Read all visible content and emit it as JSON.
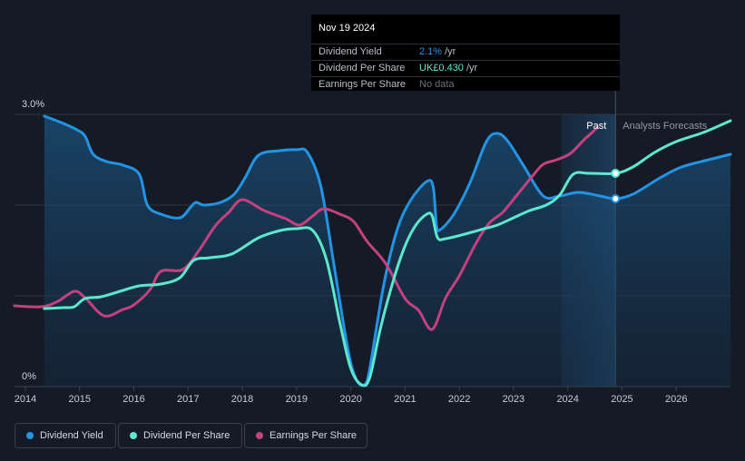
{
  "chart_data": {
    "type": "line",
    "ytick_labels": [
      "3.0%",
      "0%"
    ],
    "ylim": [
      0,
      3.0
    ],
    "xlim": [
      2013.8,
      2027.0
    ],
    "xtick_values": [
      2014,
      2015,
      2016,
      2017,
      2018,
      2019,
      2020,
      2021,
      2022,
      2023,
      2024,
      2025,
      2026
    ],
    "xtick_labels": [
      "2014",
      "2015",
      "2016",
      "2017",
      "2018",
      "2019",
      "2020",
      "2021",
      "2022",
      "2023",
      "2024",
      "2025",
      "2026"
    ],
    "past_label": "Past",
    "forecast_label": "Analysts Forecasts",
    "divider_x": 2024.88,
    "forecast_band_start": 2023.88,
    "series": [
      {
        "name": "Dividend Yield",
        "color": "#2394e3",
        "area": true,
        "points": [
          [
            2014.35,
            2.98
          ],
          [
            2014.7,
            2.9
          ],
          [
            2014.95,
            2.83
          ],
          [
            2015.1,
            2.76
          ],
          [
            2015.25,
            2.56
          ],
          [
            2015.5,
            2.48
          ],
          [
            2015.8,
            2.44
          ],
          [
            2016.1,
            2.34
          ],
          [
            2016.25,
            2.0
          ],
          [
            2016.5,
            1.9
          ],
          [
            2016.85,
            1.86
          ],
          [
            2017.05,
            1.98
          ],
          [
            2017.15,
            2.03
          ],
          [
            2017.3,
            2.0
          ],
          [
            2017.6,
            2.03
          ],
          [
            2017.85,
            2.12
          ],
          [
            2018.05,
            2.3
          ],
          [
            2018.3,
            2.55
          ],
          [
            2018.7,
            2.6
          ],
          [
            2019.0,
            2.61
          ],
          [
            2019.2,
            2.58
          ],
          [
            2019.45,
            2.2
          ],
          [
            2019.7,
            1.3
          ],
          [
            2019.95,
            0.4
          ],
          [
            2020.1,
            0.08
          ],
          [
            2020.25,
            0.02
          ],
          [
            2020.35,
            0.2
          ],
          [
            2020.6,
            1.1
          ],
          [
            2020.85,
            1.72
          ],
          [
            2021.1,
            2.05
          ],
          [
            2021.4,
            2.26
          ],
          [
            2021.52,
            2.2
          ],
          [
            2021.58,
            1.78
          ],
          [
            2021.65,
            1.73
          ],
          [
            2021.9,
            1.9
          ],
          [
            2022.2,
            2.25
          ],
          [
            2022.5,
            2.7
          ],
          [
            2022.7,
            2.79
          ],
          [
            2022.9,
            2.7
          ],
          [
            2023.2,
            2.42
          ],
          [
            2023.55,
            2.1
          ],
          [
            2023.85,
            2.1
          ],
          [
            2024.2,
            2.14
          ],
          [
            2024.6,
            2.1
          ],
          [
            2024.88,
            2.07
          ],
          [
            2025.2,
            2.12
          ],
          [
            2025.7,
            2.3
          ],
          [
            2026.1,
            2.42
          ],
          [
            2026.6,
            2.5
          ],
          [
            2027.0,
            2.56
          ]
        ]
      },
      {
        "name": "Dividend Per Share",
        "color": "#5ce8cc",
        "area": false,
        "points": [
          [
            2014.35,
            0.86
          ],
          [
            2014.7,
            0.87
          ],
          [
            2014.9,
            0.88
          ],
          [
            2015.1,
            0.97
          ],
          [
            2015.4,
            0.99
          ],
          [
            2015.8,
            1.06
          ],
          [
            2016.1,
            1.11
          ],
          [
            2016.5,
            1.13
          ],
          [
            2016.85,
            1.2
          ],
          [
            2017.1,
            1.39
          ],
          [
            2017.4,
            1.42
          ],
          [
            2017.8,
            1.46
          ],
          [
            2018.3,
            1.64
          ],
          [
            2018.7,
            1.72
          ],
          [
            2019.0,
            1.74
          ],
          [
            2019.3,
            1.72
          ],
          [
            2019.55,
            1.4
          ],
          [
            2019.8,
            0.7
          ],
          [
            2020.0,
            0.2
          ],
          [
            2020.2,
            0.02
          ],
          [
            2020.35,
            0.1
          ],
          [
            2020.55,
            0.65
          ],
          [
            2020.8,
            1.2
          ],
          [
            2021.0,
            1.55
          ],
          [
            2021.2,
            1.78
          ],
          [
            2021.4,
            1.9
          ],
          [
            2021.5,
            1.88
          ],
          [
            2021.6,
            1.64
          ],
          [
            2021.75,
            1.63
          ],
          [
            2022.1,
            1.68
          ],
          [
            2022.4,
            1.73
          ],
          [
            2022.7,
            1.78
          ],
          [
            2023.0,
            1.86
          ],
          [
            2023.3,
            1.94
          ],
          [
            2023.6,
            2.0
          ],
          [
            2023.85,
            2.11
          ],
          [
            2024.1,
            2.34
          ],
          [
            2024.4,
            2.35
          ],
          [
            2024.88,
            2.35
          ],
          [
            2025.2,
            2.42
          ],
          [
            2025.6,
            2.58
          ],
          [
            2026.0,
            2.7
          ],
          [
            2026.5,
            2.8
          ],
          [
            2027.0,
            2.93
          ]
        ]
      },
      {
        "name": "Earnings Per Share",
        "color": "#c4407f",
        "area": false,
        "points": [
          [
            2013.8,
            0.89
          ],
          [
            2014.3,
            0.88
          ],
          [
            2014.6,
            0.94
          ],
          [
            2014.9,
            1.05
          ],
          [
            2015.1,
            0.98
          ],
          [
            2015.45,
            0.78
          ],
          [
            2015.8,
            0.85
          ],
          [
            2016.0,
            0.9
          ],
          [
            2016.3,
            1.07
          ],
          [
            2016.5,
            1.27
          ],
          [
            2016.9,
            1.29
          ],
          [
            2017.2,
            1.5
          ],
          [
            2017.5,
            1.77
          ],
          [
            2017.75,
            1.92
          ],
          [
            2018.0,
            2.06
          ],
          [
            2018.4,
            1.94
          ],
          [
            2018.8,
            1.85
          ],
          [
            2019.05,
            1.78
          ],
          [
            2019.3,
            1.88
          ],
          [
            2019.5,
            1.96
          ],
          [
            2019.8,
            1.9
          ],
          [
            2020.05,
            1.82
          ],
          [
            2020.3,
            1.6
          ],
          [
            2020.65,
            1.35
          ],
          [
            2021.0,
            0.97
          ],
          [
            2021.25,
            0.84
          ],
          [
            2021.5,
            0.63
          ],
          [
            2021.75,
            0.98
          ],
          [
            2022.0,
            1.22
          ],
          [
            2022.3,
            1.57
          ],
          [
            2022.55,
            1.8
          ],
          [
            2022.8,
            1.92
          ],
          [
            2023.05,
            2.1
          ],
          [
            2023.35,
            2.32
          ],
          [
            2023.55,
            2.45
          ],
          [
            2023.8,
            2.5
          ],
          [
            2024.05,
            2.57
          ],
          [
            2024.3,
            2.72
          ],
          [
            2024.45,
            2.8
          ],
          [
            2024.55,
            2.86
          ]
        ]
      }
    ],
    "forecast_markers": [
      {
        "series": "Dividend Per Share",
        "x": 2024.88,
        "y": 2.35
      },
      {
        "series": "Dividend Yield",
        "x": 2024.88,
        "y": 2.07
      }
    ]
  },
  "tooltip": {
    "date": "Nov 19 2024",
    "rows": [
      {
        "label": "Dividend Yield",
        "value": "2.1%",
        "unit": "/yr",
        "color": "#2394e3"
      },
      {
        "label": "Dividend Per Share",
        "value": "UK£0.430",
        "unit": "/yr",
        "color": "#5ce8cc"
      },
      {
        "label": "Earnings Per Share",
        "value": "No data",
        "unit": "",
        "color": "#6b717b"
      }
    ]
  },
  "legend": [
    {
      "label": "Dividend Yield",
      "color": "#2394e3"
    },
    {
      "label": "Dividend Per Share",
      "color": "#5ce8cc"
    },
    {
      "label": "Earnings Per Share",
      "color": "#c4407f"
    }
  ]
}
